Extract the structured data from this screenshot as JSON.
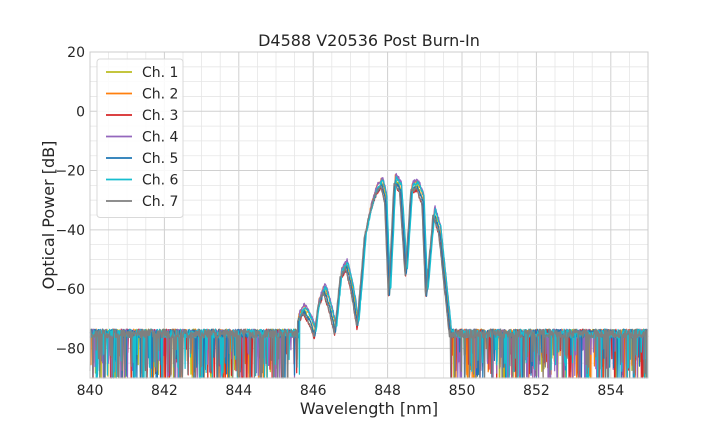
{
  "chart_data": {
    "type": "line",
    "title": "D4588 V20536 Post Burn-In",
    "xlabel": "Wavelength [nm]",
    "ylabel": "Optical Power [dB]",
    "xlim": [
      840,
      855
    ],
    "ylim": [
      -90,
      20
    ],
    "xticks": [
      840,
      842,
      844,
      846,
      848,
      850,
      852,
      854
    ],
    "yticks": [
      -80,
      -60,
      -40,
      -20,
      0,
      20
    ],
    "xtick_labels": [
      "840",
      "842",
      "844",
      "846",
      "848",
      "850",
      "852",
      "854"
    ],
    "ytick_labels": [
      "−80",
      "−60",
      "−40",
      "−20",
      "0",
      "20"
    ],
    "grid": true,
    "legend_position": "top-left",
    "noise_floor": -75,
    "envelope": [
      [
        845.6,
        -70
      ],
      [
        845.75,
        -67
      ],
      [
        845.9,
        -70
      ],
      [
        846.05,
        -75
      ],
      [
        846.15,
        -65
      ],
      [
        846.3,
        -60
      ],
      [
        846.45,
        -66
      ],
      [
        846.6,
        -74
      ],
      [
        846.75,
        -55
      ],
      [
        846.9,
        -52
      ],
      [
        847.05,
        -60
      ],
      [
        847.2,
        -72
      ],
      [
        847.4,
        -42
      ],
      [
        847.55,
        -33
      ],
      [
        847.7,
        -27
      ],
      [
        847.85,
        -24
      ],
      [
        847.95,
        -30
      ],
      [
        848.05,
        -62
      ],
      [
        848.2,
        -23
      ],
      [
        848.35,
        -26
      ],
      [
        848.5,
        -55
      ],
      [
        848.65,
        -26
      ],
      [
        848.8,
        -25
      ],
      [
        848.95,
        -30
      ],
      [
        849.05,
        -62
      ],
      [
        849.25,
        -34
      ],
      [
        849.4,
        -40
      ],
      [
        849.55,
        -58
      ],
      [
        849.7,
        -76
      ]
    ],
    "series": [
      {
        "name": "Ch. 1",
        "color": "#bcbd22",
        "offset": 0.0,
        "xshift": 0.0
      },
      {
        "name": "Ch. 2",
        "color": "#ff7f0e",
        "offset": 1.5,
        "xshift": 0.01
      },
      {
        "name": "Ch. 3",
        "color": "#d62728",
        "offset": -1.5,
        "xshift": -0.02
      },
      {
        "name": "Ch. 4",
        "color": "#9467bd",
        "offset": 2.0,
        "xshift": 0.02
      },
      {
        "name": "Ch. 5",
        "color": "#1f77b4",
        "offset": -0.5,
        "xshift": 0.0
      },
      {
        "name": "Ch. 6",
        "color": "#17becf",
        "offset": 1.0,
        "xshift": 0.03
      },
      {
        "name": "Ch. 7",
        "color": "#7f7f7f",
        "offset": -1.0,
        "xshift": -0.03
      }
    ]
  }
}
